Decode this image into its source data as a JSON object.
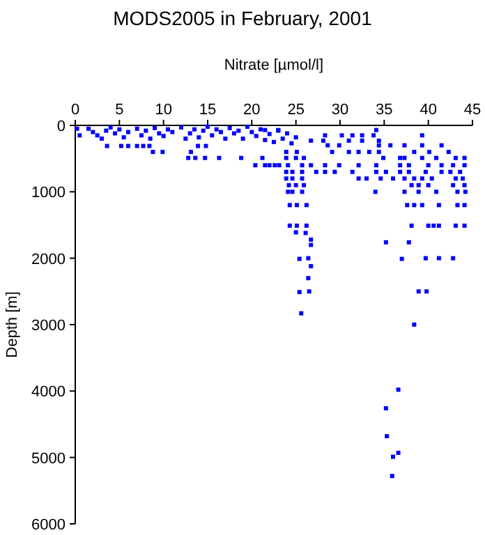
{
  "chart_data": {
    "type": "scatter",
    "title": "MODS2005 in February, 2001",
    "xlabel": "Nitrate [µmol/l]",
    "ylabel": "Depth [m]",
    "xlim": [
      0,
      45
    ],
    "xticks": [
      0,
      5,
      10,
      15,
      20,
      25,
      30,
      35,
      40,
      45
    ],
    "ylim": [
      6000,
      0
    ],
    "yticks": [
      0,
      1000,
      2000,
      3000,
      4000,
      5000,
      6000
    ],
    "grid": false,
    "marker": "square",
    "series": [
      {
        "color": "#0000ff",
        "x": [
          0.2,
          0.5,
          1.5,
          2,
          2.5,
          3,
          3.5,
          4,
          4.5,
          5,
          5.5,
          6,
          7,
          7.5,
          8,
          8.5,
          9,
          9.5,
          10,
          10.5,
          11,
          12,
          12.5,
          13,
          13.5,
          14,
          14.5,
          15,
          15.5,
          16,
          16.5,
          17,
          17.5,
          18,
          18.5,
          19,
          19.5,
          20,
          20.5,
          21,
          21.5,
          22,
          22.5,
          23,
          23.5,
          24,
          24.5,
          25,
          3.6,
          5.2,
          6,
          7,
          7.7,
          8.4,
          8.8,
          9.9,
          13.1,
          13.9,
          14.8,
          12.8,
          13.6,
          14.7,
          16.3,
          18.8,
          21.2,
          20.4,
          21.5,
          22.6,
          21.5,
          23,
          34.1,
          28.3,
          30.2,
          31.4,
          32.5,
          33.8,
          39.3,
          26.7,
          28.1,
          31,
          32.5,
          34.4,
          28.6,
          29.9,
          34.4,
          35.7,
          37.3,
          39.3,
          41.5,
          23.9,
          25.1,
          29.1,
          31,
          32.1,
          33.3,
          34.4,
          38.4,
          40.1,
          42.3,
          23.9,
          25,
          25.9,
          34.9,
          36.8,
          37.3,
          39.3,
          40.9,
          43.1,
          44.1,
          22,
          23.1,
          24.1,
          25.7,
          26.7,
          28.3,
          29.9,
          32.1,
          34.1,
          36.8,
          37.8,
          40,
          41.5,
          42.8,
          44.1,
          23.9,
          24.6,
          25.7,
          27.3,
          28.3,
          29.4,
          31.4,
          34.1,
          35.2,
          36.8,
          37.8,
          39.7,
          41.5,
          42.5,
          43.6,
          23.9,
          24.6,
          25.7,
          32.1,
          33,
          34.6,
          36,
          37.3,
          38.4,
          39.3,
          40.4,
          43.1,
          43.9,
          24.2,
          25,
          25.9,
          38.1,
          38.9,
          40,
          42.8,
          44.1,
          24.1,
          24.6,
          25.7,
          34,
          37.3,
          38.9,
          40.9,
          43.3,
          44.2,
          24.3,
          25.1,
          26.2,
          37.6,
          38.4,
          39.3,
          41.2,
          43.3,
          44.1,
          24.3,
          25.1,
          26.2,
          38.1,
          40,
          40.6,
          41.2,
          43.1,
          44.1,
          25,
          26.1,
          26.7,
          26.7,
          35.2,
          37.8,
          25.4,
          26.4,
          37,
          39.7,
          41.2,
          42.8,
          26.7,
          26.4,
          25.4,
          26.5,
          38.9,
          39.8,
          25.6,
          38.4,
          36.6,
          35.2,
          35.3,
          36.6,
          36,
          35.9
        ],
        "values": [
          50,
          150,
          50,
          100,
          150,
          200,
          80,
          30,
          120,
          60,
          180,
          100,
          50,
          150,
          80,
          200,
          40,
          120,
          160,
          60,
          100,
          30,
          200,
          120,
          60,
          180,
          80,
          20,
          150,
          60,
          100,
          200,
          40,
          120,
          80,
          200,
          20,
          100,
          160,
          60,
          220,
          130,
          250,
          80,
          200,
          120,
          270,
          180,
          310,
          310,
          310,
          310,
          310,
          310,
          400,
          400,
          400,
          310,
          310,
          490,
          490,
          490,
          490,
          490,
          490,
          600,
          600,
          600,
          70,
          70,
          70,
          150,
          150,
          150,
          150,
          150,
          150,
          230,
          230,
          230,
          230,
          230,
          300,
          300,
          300,
          300,
          300,
          300,
          300,
          400,
          400,
          400,
          400,
          400,
          400,
          400,
          400,
          400,
          400,
          490,
          490,
          490,
          490,
          490,
          490,
          490,
          490,
          490,
          490,
          600,
          600,
          600,
          600,
          600,
          600,
          600,
          600,
          600,
          600,
          600,
          600,
          600,
          600,
          600,
          700,
          700,
          700,
          700,
          700,
          700,
          700,
          700,
          700,
          700,
          700,
          700,
          700,
          700,
          700,
          800,
          800,
          800,
          800,
          800,
          800,
          800,
          800,
          800,
          800,
          800,
          800,
          800,
          900,
          900,
          900,
          900,
          900,
          900,
          900,
          900,
          1000,
          1000,
          1000,
          1000,
          1000,
          1000,
          1000,
          1000,
          1000,
          1200,
          1200,
          1200,
          1200,
          1200,
          1200,
          1200,
          1200,
          1200,
          1510,
          1510,
          1510,
          1510,
          1510,
          1510,
          1510,
          1510,
          1510,
          1610,
          1620,
          1720,
          1800,
          1760,
          1760,
          2010,
          2000,
          2010,
          2000,
          2000,
          2000,
          2120,
          2300,
          2510,
          2500,
          2500,
          2500,
          2830,
          3000,
          3980,
          4260,
          4680,
          4930,
          4990,
          5280
        ]
      }
    ]
  }
}
